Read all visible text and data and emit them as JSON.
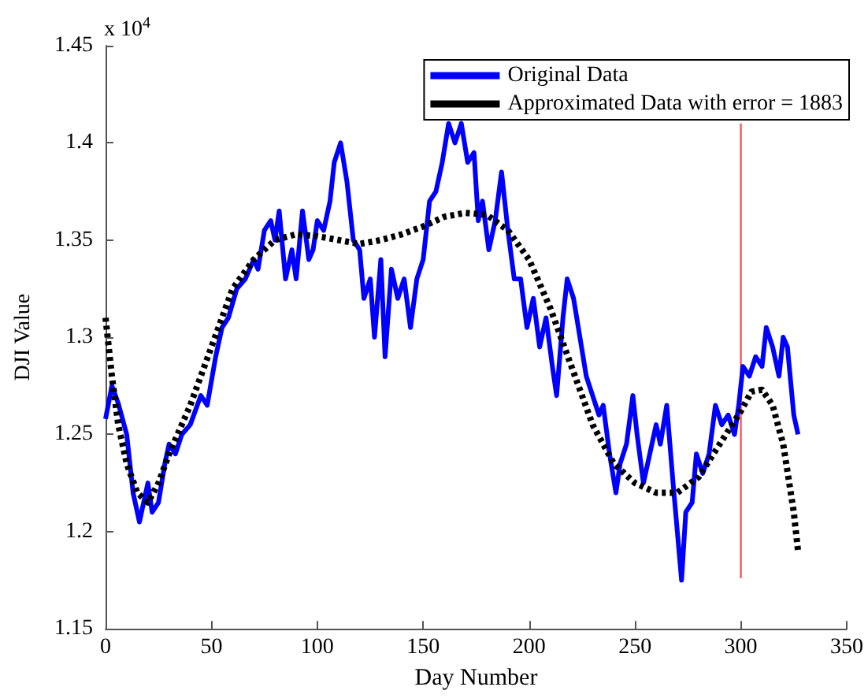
{
  "chart_data": {
    "type": "line",
    "xlabel": "Day Number",
    "ylabel": "DJI Value",
    "annotations": [
      "x 10$^{4}$"
    ],
    "xlim": [
      0,
      350
    ],
    "xticks": [
      0,
      50,
      100,
      150,
      200,
      250,
      300,
      350
    ],
    "ylim": [
      1.15,
      1.45
    ],
    "yticks": [
      1.15,
      1.2,
      1.25,
      1.3,
      1.35,
      1.4,
      1.45
    ],
    "grid": false,
    "legend": "top right",
    "series": [
      {
        "name": "Original Data",
        "color": "#0000ff",
        "line_style": "solid",
        "x": [
          0,
          3,
          6,
          10,
          13,
          16,
          20,
          22,
          25,
          28,
          30,
          33,
          36,
          40,
          45,
          48,
          52,
          55,
          58,
          62,
          66,
          70,
          72,
          75,
          78,
          80,
          82,
          85,
          88,
          90,
          93,
          96,
          98,
          100,
          103,
          106,
          108,
          111,
          114,
          117,
          120,
          122,
          125,
          127,
          130,
          132,
          135,
          138,
          141,
          144,
          147,
          150,
          153,
          156,
          159,
          162,
          165,
          168,
          171,
          174,
          176,
          178,
          181,
          184,
          187,
          190,
          193,
          196,
          199,
          202,
          205,
          208,
          211,
          213,
          216,
          218,
          221,
          224,
          227,
          230,
          233,
          235,
          238,
          241,
          243,
          246,
          249,
          251,
          254,
          257,
          260,
          262,
          265,
          268,
          270,
          272,
          274,
          277,
          279,
          282,
          285,
          288,
          291,
          294,
          297,
          299,
          301,
          304,
          307,
          310,
          312,
          315,
          318,
          320,
          322,
          325,
          327
        ],
        "values": [
          1.258,
          1.275,
          1.266,
          1.25,
          1.22,
          1.205,
          1.225,
          1.21,
          1.215,
          1.235,
          1.245,
          1.24,
          1.25,
          1.255,
          1.27,
          1.265,
          1.29,
          1.305,
          1.31,
          1.325,
          1.33,
          1.34,
          1.335,
          1.355,
          1.36,
          1.35,
          1.365,
          1.33,
          1.345,
          1.33,
          1.365,
          1.34,
          1.345,
          1.36,
          1.355,
          1.37,
          1.39,
          1.4,
          1.38,
          1.35,
          1.345,
          1.32,
          1.33,
          1.3,
          1.34,
          1.29,
          1.335,
          1.32,
          1.33,
          1.305,
          1.33,
          1.34,
          1.37,
          1.375,
          1.39,
          1.41,
          1.4,
          1.41,
          1.39,
          1.395,
          1.36,
          1.37,
          1.345,
          1.36,
          1.385,
          1.355,
          1.33,
          1.33,
          1.305,
          1.32,
          1.295,
          1.31,
          1.285,
          1.27,
          1.31,
          1.33,
          1.32,
          1.3,
          1.28,
          1.27,
          1.26,
          1.265,
          1.24,
          1.22,
          1.235,
          1.245,
          1.27,
          1.25,
          1.225,
          1.24,
          1.255,
          1.245,
          1.265,
          1.225,
          1.2,
          1.175,
          1.21,
          1.215,
          1.24,
          1.23,
          1.24,
          1.265,
          1.255,
          1.26,
          1.25,
          1.265,
          1.285,
          1.28,
          1.29,
          1.285,
          1.305,
          1.295,
          1.28,
          1.3,
          1.295,
          1.26,
          1.25
        ]
      },
      {
        "name": "Approximated Data with error = 1883",
        "color": "#000000",
        "line_style": "dotted",
        "x": [
          0,
          3,
          6,
          10,
          15,
          20,
          25,
          30,
          40,
          50,
          60,
          70,
          80,
          90,
          100,
          110,
          120,
          130,
          140,
          150,
          160,
          170,
          180,
          190,
          200,
          210,
          220,
          230,
          240,
          250,
          260,
          270,
          280,
          290,
          300,
          305,
          310,
          315,
          320,
          325,
          327
        ],
        "values": [
          1.31,
          1.28,
          1.255,
          1.235,
          1.22,
          1.215,
          1.225,
          1.24,
          1.265,
          1.295,
          1.325,
          1.34,
          1.35,
          1.353,
          1.352,
          1.35,
          1.348,
          1.35,
          1.353,
          1.357,
          1.362,
          1.364,
          1.363,
          1.355,
          1.34,
          1.315,
          1.285,
          1.255,
          1.235,
          1.225,
          1.22,
          1.22,
          1.228,
          1.245,
          1.262,
          1.272,
          1.273,
          1.265,
          1.245,
          1.21,
          1.19
        ]
      },
      {
        "color": "#ff5555",
        "line_style": "solid",
        "x": [
          300,
          300
        ],
        "values": [
          1.176,
          1.41
        ]
      }
    ]
  }
}
